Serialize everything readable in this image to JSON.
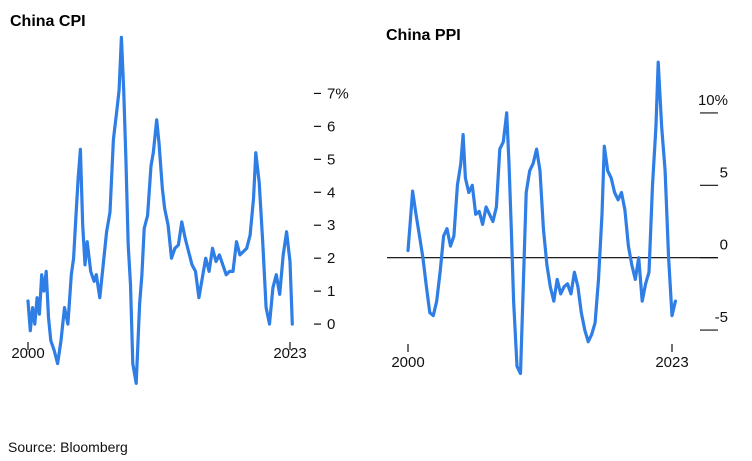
{
  "source": "Source: Bloomberg",
  "colors": {
    "line": "#2e7ee6",
    "zero_line": "#000000",
    "text": "#111111"
  },
  "chart_data": [
    {
      "type": "line",
      "title": "China CPI",
      "xlabel": "",
      "ylabel": "",
      "y_unit": "%",
      "y_axis_side": "right",
      "xlim": [
        2000,
        2023
      ],
      "ylim": [
        -2,
        8.5
      ],
      "x_tick_labels": [
        "2000",
        "2023"
      ],
      "y_ticks": [
        0,
        1,
        2,
        3,
        4,
        5,
        6,
        7
      ],
      "y_tick_labels": [
        "0",
        "1",
        "2",
        "3",
        "4",
        "5",
        "6",
        "7%"
      ],
      "grid": false,
      "series": [
        {
          "x": [
            2000.0,
            2000.2,
            2000.4,
            2000.6,
            2000.8,
            2001.0,
            2001.2,
            2001.4,
            2001.6,
            2001.8,
            2002.0,
            2002.3,
            2002.6,
            2002.9,
            2003.2,
            2003.5,
            2003.8,
            2004.0,
            2004.2,
            2004.4,
            2004.6,
            2004.8,
            2005.0,
            2005.2,
            2005.5,
            2005.8,
            2006.0,
            2006.3,
            2006.6,
            2006.9,
            2007.2,
            2007.5,
            2007.8,
            2008.0,
            2008.2,
            2008.4,
            2008.6,
            2008.8,
            2009.0,
            2009.2,
            2009.5,
            2009.8,
            2010.0,
            2010.2,
            2010.5,
            2010.8,
            2011.0,
            2011.3,
            2011.5,
            2011.8,
            2012.0,
            2012.3,
            2012.6,
            2012.9,
            2013.2,
            2013.5,
            2013.8,
            2014.1,
            2014.4,
            2014.7,
            2015.0,
            2015.3,
            2015.6,
            2015.9,
            2016.2,
            2016.5,
            2016.8,
            2017.1,
            2017.4,
            2017.7,
            2018.0,
            2018.3,
            2018.6,
            2018.9,
            2019.2,
            2019.5,
            2019.8,
            2020.0,
            2020.3,
            2020.6,
            2020.9,
            2021.2,
            2021.5,
            2021.8,
            2022.1,
            2022.4,
            2022.7,
            2023.0,
            2023.2
          ],
          "y": [
            0.7,
            -0.2,
            0.5,
            0.0,
            0.8,
            0.3,
            1.5,
            1.0,
            1.6,
            0.2,
            -0.5,
            -0.8,
            -1.2,
            -0.5,
            0.5,
            0.0,
            1.5,
            2.0,
            3.2,
            4.4,
            5.3,
            3.0,
            1.8,
            2.5,
            1.6,
            1.3,
            1.5,
            0.8,
            1.8,
            2.8,
            3.4,
            5.6,
            6.5,
            7.1,
            8.7,
            7.1,
            4.9,
            2.4,
            1.2,
            -1.2,
            -1.8,
            0.6,
            1.5,
            2.9,
            3.3,
            4.8,
            5.2,
            6.2,
            5.5,
            4.1,
            3.5,
            3.0,
            2.0,
            2.3,
            2.4,
            3.1,
            2.6,
            2.2,
            1.8,
            1.6,
            0.8,
            1.4,
            2.0,
            1.6,
            2.3,
            1.9,
            2.1,
            1.8,
            1.5,
            1.6,
            1.6,
            2.5,
            2.1,
            2.2,
            2.3,
            2.7,
            3.8,
            5.2,
            4.3,
            2.5,
            0.5,
            0.0,
            1.1,
            1.5,
            0.9,
            2.1,
            2.8,
            1.9,
            0.0
          ]
        }
      ]
    },
    {
      "type": "line",
      "title": "China PPI",
      "xlabel": "",
      "ylabel": "",
      "y_unit": "%",
      "y_axis_side": "right",
      "xlim": [
        2000,
        2023
      ],
      "ylim": [
        -9,
        14
      ],
      "x_tick_labels": [
        "2000",
        "2023"
      ],
      "y_ticks": [
        -5,
        0,
        5,
        10
      ],
      "y_tick_labels": [
        "-5",
        "0",
        "5",
        "10%"
      ],
      "zero_line": true,
      "grid": false,
      "series": [
        {
          "x": [
            2000.0,
            2000.2,
            2000.4,
            2000.7,
            2001.0,
            2001.3,
            2001.6,
            2001.9,
            2002.2,
            2002.5,
            2002.8,
            2003.1,
            2003.4,
            2003.7,
            2004.0,
            2004.3,
            2004.6,
            2004.8,
            2005.0,
            2005.3,
            2005.6,
            2005.9,
            2006.2,
            2006.5,
            2006.8,
            2007.1,
            2007.4,
            2007.7,
            2008.0,
            2008.3,
            2008.6,
            2008.8,
            2009.0,
            2009.2,
            2009.5,
            2009.8,
            2010.0,
            2010.3,
            2010.6,
            2010.9,
            2011.2,
            2011.5,
            2011.8,
            2012.1,
            2012.4,
            2012.7,
            2013.0,
            2013.3,
            2013.6,
            2013.9,
            2014.2,
            2014.5,
            2014.8,
            2015.1,
            2015.4,
            2015.7,
            2016.0,
            2016.3,
            2016.6,
            2016.9,
            2017.1,
            2017.4,
            2017.7,
            2018.0,
            2018.3,
            2018.6,
            2018.9,
            2019.2,
            2019.5,
            2019.8,
            2020.1,
            2020.4,
            2020.7,
            2021.0,
            2021.3,
            2021.6,
            2021.8,
            2022.1,
            2022.4,
            2022.7,
            2023.0,
            2023.3
          ],
          "y": [
            0.5,
            2.5,
            4.6,
            3.0,
            1.5,
            0.0,
            -2.0,
            -3.8,
            -4.0,
            -3.0,
            -1.0,
            1.5,
            2.0,
            0.8,
            1.5,
            5.0,
            6.5,
            8.5,
            5.5,
            4.5,
            5.0,
            3.0,
            3.2,
            2.3,
            3.5,
            3.0,
            2.5,
            3.5,
            7.5,
            8.0,
            10.0,
            6.5,
            2.0,
            -3.0,
            -7.5,
            -8.0,
            -3.0,
            4.5,
            6.0,
            6.5,
            7.5,
            6.0,
            2.0,
            -0.5,
            -2.0,
            -3.0,
            -1.5,
            -2.5,
            -2.0,
            -1.8,
            -2.5,
            -1.0,
            -2.0,
            -3.8,
            -5.0,
            -5.8,
            -5.3,
            -4.5,
            -1.5,
            3.0,
            7.7,
            6.0,
            5.5,
            4.5,
            4.0,
            4.5,
            3.3,
            0.8,
            -0.5,
            -1.5,
            0.0,
            -3.0,
            -1.8,
            -1.0,
            5.0,
            9.0,
            13.5,
            9.0,
            6.0,
            0.0,
            -4.0,
            -3.0
          ]
        }
      ]
    }
  ]
}
